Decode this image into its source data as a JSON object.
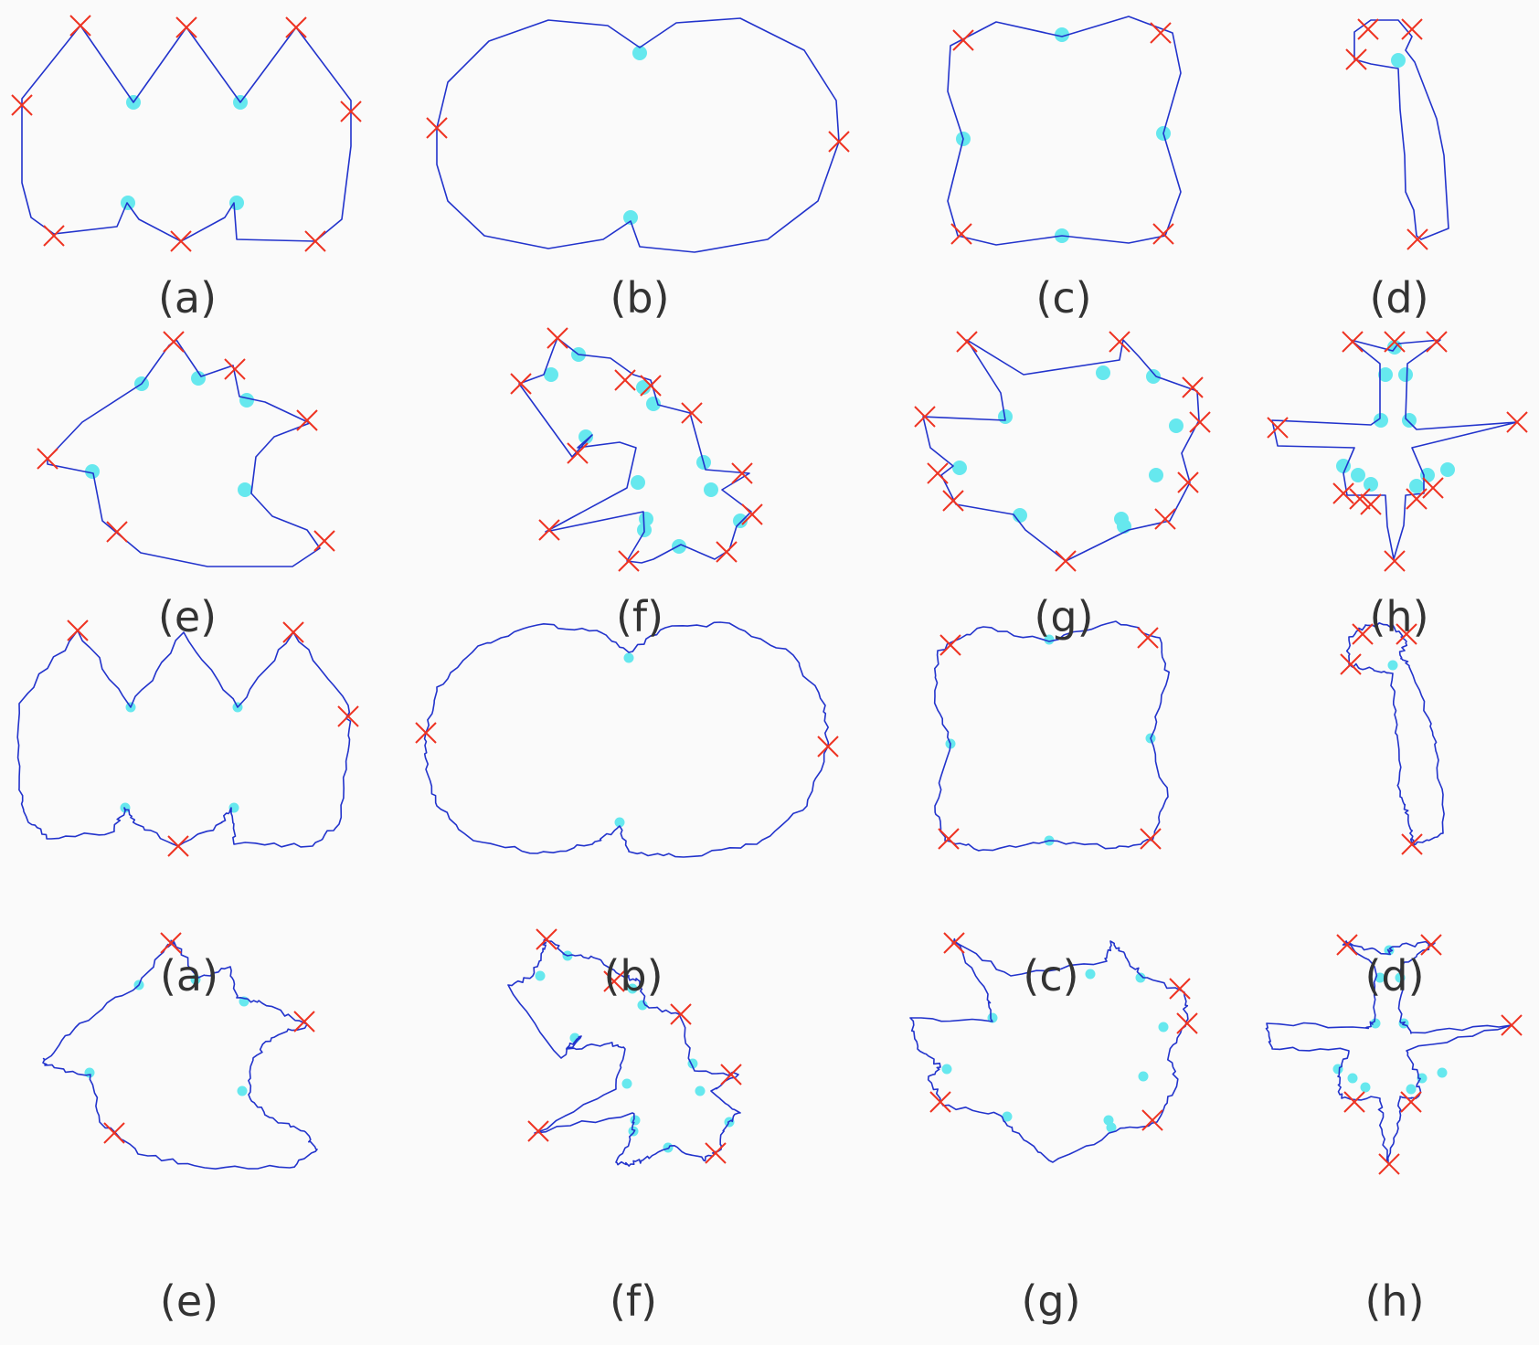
{
  "colors": {
    "contour": "#2233cc",
    "concave": "#66e8ee",
    "convex": "#ee3322",
    "caption": "#333333",
    "background": "#fafafa"
  },
  "icons": {
    "convex_marker": "red-x-marker",
    "concave_marker": "cyan-dot-marker"
  },
  "panels": [
    {
      "id": "row1-a",
      "label": "(a)",
      "shape": "arches",
      "style": "smooth"
    },
    {
      "id": "row1-b",
      "label": "(b)",
      "shape": "peanut",
      "style": "smooth"
    },
    {
      "id": "row1-c",
      "label": "(c)",
      "shape": "clover",
      "style": "smooth"
    },
    {
      "id": "row1-d",
      "label": "(d)",
      "shape": "hook",
      "style": "smooth"
    },
    {
      "id": "row1-e",
      "label": "(e)",
      "shape": "bird",
      "style": "smooth"
    },
    {
      "id": "row1-f",
      "label": "(f)",
      "shape": "leaf",
      "style": "smooth"
    },
    {
      "id": "row1-g",
      "label": "(g)",
      "shape": "blob",
      "style": "smooth"
    },
    {
      "id": "row1-h",
      "label": "(h)",
      "shape": "airplane",
      "style": "smooth"
    },
    {
      "id": "row2-a",
      "label": "(a)",
      "shape": "arches",
      "style": "noisy"
    },
    {
      "id": "row2-b",
      "label": "(b)",
      "shape": "peanut",
      "style": "noisy"
    },
    {
      "id": "row2-c",
      "label": "(c)",
      "shape": "clover",
      "style": "noisy"
    },
    {
      "id": "row2-d",
      "label": "(d)",
      "shape": "hook",
      "style": "noisy"
    },
    {
      "id": "row2-e",
      "label": "(e)",
      "shape": "bird",
      "style": "noisy"
    },
    {
      "id": "row2-f",
      "label": "(f)",
      "shape": "leaf",
      "style": "noisy"
    },
    {
      "id": "row2-g",
      "label": "(g)",
      "shape": "blob",
      "style": "noisy"
    },
    {
      "id": "row2-h",
      "label": "(h)",
      "shape": "airplane",
      "style": "noisy"
    }
  ]
}
